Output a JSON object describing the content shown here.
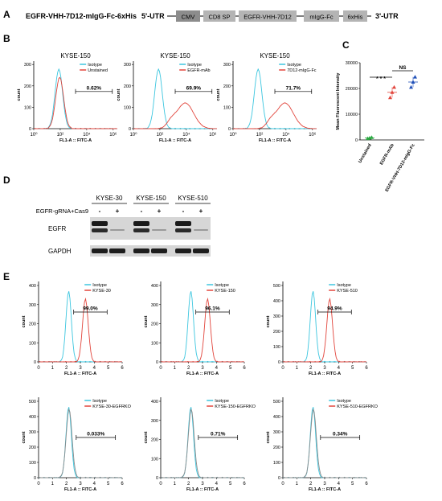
{
  "colors": {
    "isotype": "#3cc6df",
    "sample": "#e2453c",
    "ko": "#8a8a8a",
    "box1": "#8c8c8c",
    "box2": "#b4b4b4",
    "green": "#2aa840",
    "blue": "#1f4fb8"
  },
  "panelA": {
    "letter": "A",
    "construct": "EGFR-VHH-7D12-mIgG-Fc-6xHis",
    "utr5": "5'-UTR",
    "utr3": "3'-UTR",
    "boxes": [
      "CMV",
      "CD8 SP",
      "EGFR-VHH-7D12",
      "mIgG-Fc",
      "6xHis"
    ]
  },
  "panelB": {
    "letter": "B",
    "xlabel": "FL1-A :: FITC-A",
    "ylabel": "count",
    "yticks": [
      "0",
      "100",
      "200",
      "300"
    ],
    "xticks": [
      "10⁰",
      "10²",
      "10⁴",
      "10⁶"
    ],
    "plots": [
      {
        "title": "KYSE-150",
        "legend": [
          "Isotype",
          "Unstained"
        ],
        "gate": "0.62%",
        "type": "unstained"
      },
      {
        "title": "KYSE-150",
        "legend": [
          "Isotype",
          "EGFR-mAb"
        ],
        "gate": "69.9%",
        "type": "shift"
      },
      {
        "title": "KYSE-150",
        "legend": [
          "Isotype",
          "7D12-mIgG-Fc"
        ],
        "gate": "71.7%",
        "type": "shift"
      }
    ]
  },
  "panelC": {
    "letter": "C",
    "ylabel": "Mean Fluorescent Intensity",
    "yticks": [
      "0",
      "10000",
      "20000",
      "30000"
    ],
    "sig1": "* * *",
    "sig2": "NS",
    "categories": [
      "Unstained",
      "EGFR-mAb",
      "EGFR-VHH-7D12-mIgG-Fc"
    ],
    "chart_data": {
      "type": "scatter",
      "categories": [
        "Unstained",
        "EGFR-mAb",
        "EGFR-VHH-7D12-mIgG-Fc"
      ],
      "ylim": [
        0,
        30000
      ],
      "series": [
        {
          "values": [
            600,
            800,
            1000
          ]
        },
        {
          "values": [
            16500,
            18500,
            20500
          ]
        },
        {
          "values": [
            20500,
            22500,
            24500
          ]
        }
      ],
      "means": [
        800,
        18500,
        22500
      ]
    }
  },
  "panelD": {
    "letter": "D",
    "lines": [
      "KYSE-30",
      "KYSE-150",
      "KYSE-510"
    ],
    "treatment": "EGFR-gRNA+Cas9",
    "signs": [
      "-",
      "+",
      "-",
      "+",
      "-",
      "+"
    ],
    "rows": [
      "EGFR",
      "GAPDH"
    ]
  },
  "panelE": {
    "letter": "E",
    "xlabel": "FL1-A :: FITC-A",
    "ylabel": "count",
    "xticks": [
      "0",
      "1",
      "2",
      "3",
      "4",
      "5",
      "6"
    ],
    "plots": [
      {
        "legend": [
          "Isotype",
          "KYSE-30"
        ],
        "gate": "99.0%",
        "ymax": 400,
        "yticks": [
          "0",
          "100",
          "200",
          "300",
          "400"
        ],
        "type": "shift"
      },
      {
        "legend": [
          "Isotype",
          "KYSE-150"
        ],
        "gate": "96.1%",
        "ymax": 400,
        "yticks": [
          "0",
          "100",
          "200",
          "300",
          "400"
        ],
        "type": "shift"
      },
      {
        "legend": [
          "Isotype",
          "KYSE-510"
        ],
        "gate": "94.9%",
        "ymax": 500,
        "yticks": [
          "0",
          "100",
          "200",
          "300",
          "400",
          "500"
        ],
        "type": "shift"
      },
      {
        "legend": [
          "Isotype",
          "KYSE-30-EGFRKO"
        ],
        "gate": "0.033%",
        "ymax": 500,
        "yticks": [
          "0",
          "100",
          "200",
          "300",
          "400",
          "500"
        ],
        "type": "ko"
      },
      {
        "legend": [
          "Isotype",
          "KYSE-150-EGFRKO"
        ],
        "gate": "0.71%",
        "ymax": 400,
        "yticks": [
          "0",
          "100",
          "200",
          "300",
          "400"
        ],
        "type": "ko"
      },
      {
        "legend": [
          "Isotype",
          "KYSE-510-EGFRKO"
        ],
        "gate": "0.34%",
        "ymax": 500,
        "yticks": [
          "0",
          "100",
          "200",
          "300",
          "400",
          "500"
        ],
        "type": "ko"
      }
    ]
  }
}
